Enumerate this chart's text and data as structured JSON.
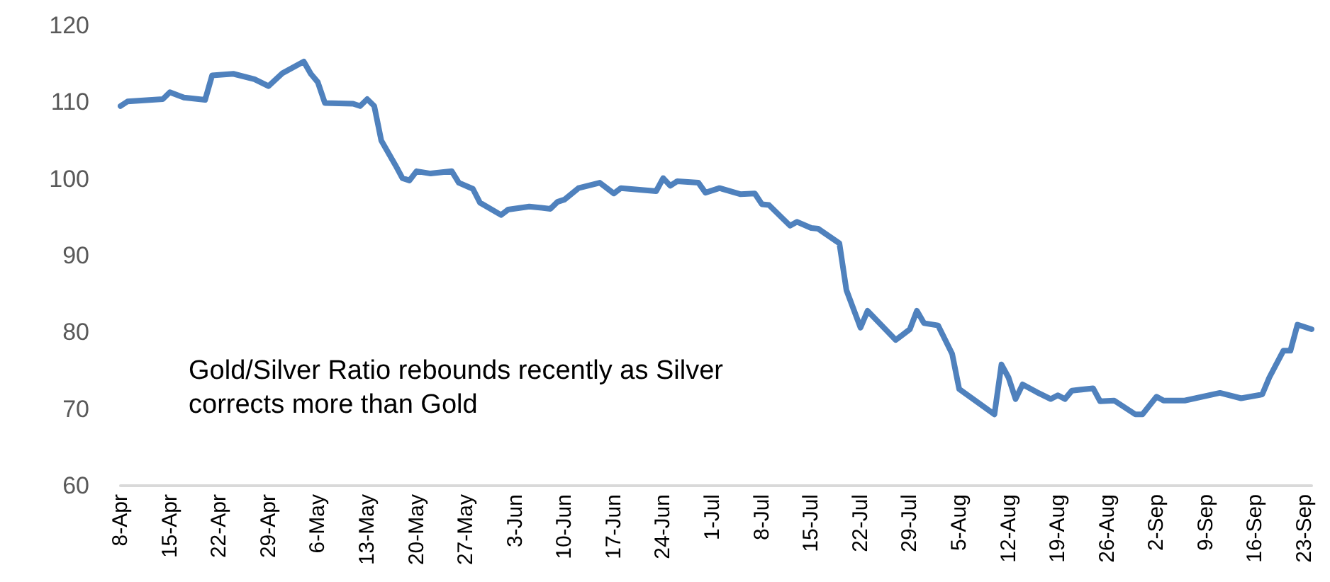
{
  "chart_data": {
    "type": "line",
    "annotations": [
      "Gold/Silver Ratio rebounds recently as Silver corrects more than Gold"
    ],
    "x": [
      "--04-08",
      "--04-09",
      "--04-14",
      "--04-15",
      "--04-17",
      "--04-20",
      "--04-21",
      "--04-24",
      "--04-27",
      "--04-29",
      "--05-01",
      "--05-04",
      "--05-05",
      "--05-06",
      "--05-07",
      "--05-11",
      "--05-12",
      "--05-13",
      "--05-14",
      "--05-15",
      "--05-17",
      "--05-18",
      "--05-19",
      "--05-20",
      "--05-22",
      "--05-25",
      "--05-26",
      "--05-28",
      "--05-29",
      "--06-01",
      "--06-02",
      "--06-05",
      "--06-08",
      "--06-09",
      "--06-10",
      "--06-12",
      "--06-15",
      "--06-17",
      "--06-18",
      "--06-23",
      "--06-24",
      "--06-25",
      "--06-26",
      "--06-29",
      "--06-30",
      "--07-02",
      "--07-05",
      "--07-07",
      "--07-08",
      "--07-09",
      "--07-12",
      "--07-13",
      "--07-15",
      "--07-16",
      "--07-19",
      "--07-20",
      "--07-22",
      "--07-23",
      "--07-27",
      "--07-29",
      "--07-30",
      "--07-31",
      "--08-02",
      "--08-04",
      "--08-05",
      "--08-10",
      "--08-11",
      "--08-12",
      "--08-13",
      "--08-14",
      "--08-16",
      "--08-18",
      "--08-19",
      "--08-20",
      "--08-21",
      "--08-24",
      "--08-25",
      "--08-27",
      "--08-30",
      "--08-31",
      "--09-02",
      "--09-03",
      "--09-06",
      "--09-11",
      "--09-14",
      "--09-17",
      "--09-18",
      "--09-20",
      "--09-21",
      "--09-22",
      "--09-24"
    ],
    "series": [
      {
        "color": "#4f81bd",
        "values": [
          109.5,
          110.1,
          110.4,
          111.3,
          110.6,
          110.3,
          113.5,
          113.7,
          113.0,
          112.1,
          113.8,
          115.3,
          113.7,
          112.6,
          109.9,
          109.8,
          109.5,
          110.4,
          109.5,
          105.0,
          101.8,
          100.1,
          99.8,
          101.0,
          100.7,
          101.0,
          99.5,
          98.7,
          96.9,
          95.3,
          96.0,
          96.4,
          96.1,
          97.0,
          97.3,
          98.8,
          99.5,
          98.1,
          98.8,
          98.4,
          100.1,
          99.1,
          99.7,
          99.5,
          98.2,
          98.8,
          98.0,
          98.1,
          96.7,
          96.6,
          93.9,
          94.4,
          93.6,
          93.5,
          91.6,
          85.5,
          80.6,
          82.8,
          79.0,
          80.4,
          82.8,
          81.2,
          80.9,
          77.2,
          72.6,
          69.3,
          75.8,
          74.1,
          71.3,
          73.2,
          72.2,
          71.3,
          71.8,
          71.3,
          72.4,
          72.7,
          71.0,
          71.1,
          69.3,
          69.3,
          71.6,
          71.1,
          71.1,
          72.1,
          71.4,
          71.9,
          74.1,
          77.6,
          77.6,
          81.0,
          80.4
        ]
      }
    ],
    "marker": "none",
    "xlim": [
      "--04-08",
      "--09-24"
    ],
    "xticks": [
      {
        "value": "--04-08",
        "label": "8-Apr"
      },
      {
        "value": "--04-15",
        "label": "15-Apr"
      },
      {
        "value": "--04-22",
        "label": "22-Apr"
      },
      {
        "value": "--04-29",
        "label": "29-Apr"
      },
      {
        "value": "--05-06",
        "label": "6-May"
      },
      {
        "value": "--05-13",
        "label": "13-May"
      },
      {
        "value": "--05-20",
        "label": "20-May"
      },
      {
        "value": "--05-27",
        "label": "27-May"
      },
      {
        "value": "--06-03",
        "label": "3-Jun"
      },
      {
        "value": "--06-10",
        "label": "10-Jun"
      },
      {
        "value": "--06-17",
        "label": "17-Jun"
      },
      {
        "value": "--06-24",
        "label": "24-Jun"
      },
      {
        "value": "--07-01",
        "label": "1-Jul"
      },
      {
        "value": "--07-08",
        "label": "8-Jul"
      },
      {
        "value": "--07-15",
        "label": "15-Jul"
      },
      {
        "value": "--07-22",
        "label": "22-Jul"
      },
      {
        "value": "--07-29",
        "label": "29-Jul"
      },
      {
        "value": "--08-05",
        "label": "5-Aug"
      },
      {
        "value": "--08-12",
        "label": "12-Aug"
      },
      {
        "value": "--08-19",
        "label": "19-Aug"
      },
      {
        "value": "--08-26",
        "label": "26-Aug"
      },
      {
        "value": "--09-02",
        "label": "2-Sep"
      },
      {
        "value": "--09-09",
        "label": "9-Sep"
      },
      {
        "value": "--09-16",
        "label": "16-Sep"
      },
      {
        "value": "--09-23",
        "label": "23-Sep"
      }
    ],
    "ylim": [
      60,
      120
    ],
    "yticks": [
      60,
      70,
      80,
      90,
      100,
      110,
      120
    ]
  }
}
